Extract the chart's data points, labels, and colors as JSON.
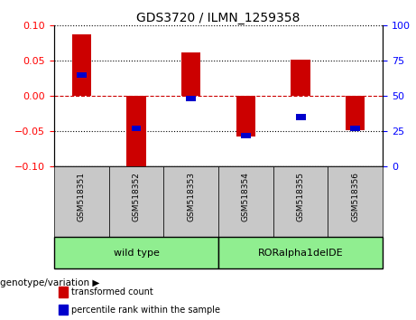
{
  "title": "GDS3720 / ILMN_1259358",
  "samples": [
    "GSM518351",
    "GSM518352",
    "GSM518353",
    "GSM518354",
    "GSM518355",
    "GSM518356"
  ],
  "transformed_count": [
    0.088,
    -0.103,
    0.062,
    -0.057,
    0.051,
    -0.048
  ],
  "percentile_rank": [
    65,
    27,
    48,
    22,
    35,
    27
  ],
  "groups": [
    {
      "label": "wild type",
      "start": 0,
      "end": 3,
      "color": "#90EE90"
    },
    {
      "label": "RORalpha1delDE",
      "start": 3,
      "end": 6,
      "color": "#90EE90"
    }
  ],
  "ylim_left": [
    -0.1,
    0.1
  ],
  "ylim_right": [
    0,
    100
  ],
  "yticks_left": [
    -0.1,
    -0.05,
    0,
    0.05,
    0.1
  ],
  "yticks_right": [
    0,
    25,
    50,
    75,
    100
  ],
  "bar_color_red": "#CC0000",
  "bar_color_blue": "#0000CC",
  "zero_line_color": "#CC0000",
  "background_label": "#C8C8C8",
  "legend_red_label": "transformed count",
  "legend_blue_label": "percentile rank within the sample",
  "genotype_label": "genotype/variation",
  "bar_width": 0.35,
  "blue_bar_width": 0.18
}
